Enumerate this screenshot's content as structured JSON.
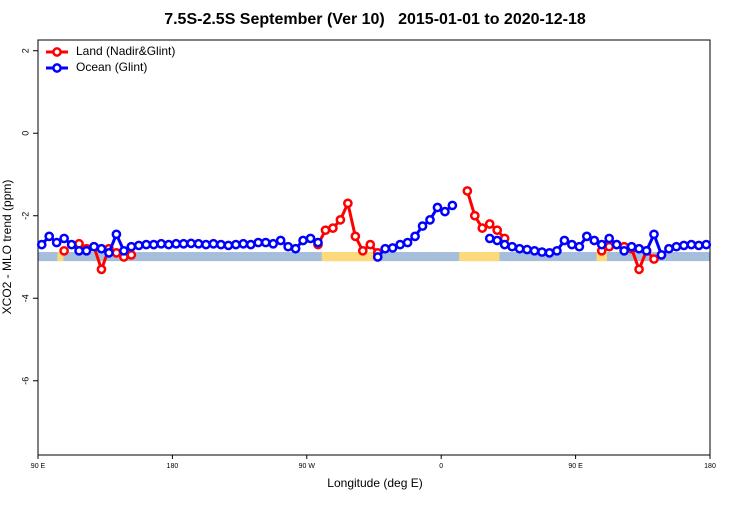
{
  "chart_data": {
    "type": "line",
    "title": "7.5S-2.5S September (Ver 10)   2015-01-01 to 2020-12-18",
    "xlabel": "Longitude (deg E)",
    "ylabel": "XCO2 - MLO trend (ppm)",
    "xlim": [
      90,
      540
    ],
    "xticks": [
      {
        "value": 90,
        "label": "90 E"
      },
      180,
      {
        "value": 270,
        "label": "90 W"
      },
      {
        "value": 360,
        "label": "0"
      },
      {
        "value": 450,
        "label": "90 E"
      },
      {
        "value": 540,
        "label": "180"
      }
    ],
    "ylim": [
      -7.8,
      2.26
    ],
    "yticks": [
      -6,
      -4,
      -2,
      0,
      2
    ],
    "legend": "top-left",
    "x": [
      92.5,
      97.5,
      102.5,
      107.5,
      112.5,
      117.5,
      122.5,
      127.5,
      132.5,
      137.5,
      142.5,
      147.5,
      152.5,
      157.5,
      162.5,
      167.5,
      172.5,
      177.5,
      182.5,
      187.5,
      192.5,
      197.5,
      202.5,
      207.5,
      212.5,
      217.5,
      222.5,
      227.5,
      232.5,
      237.5,
      242.5,
      247.5,
      252.5,
      257.5,
      262.5,
      267.5,
      272.5,
      277.5,
      282.5,
      287.5,
      292.5,
      297.5,
      302.5,
      307.5,
      312.5,
      317.5,
      322.5,
      327.5,
      332.5,
      337.5,
      342.5,
      347.5,
      352.5,
      357.5,
      362.5,
      367.5,
      372.5,
      377.5,
      382.5,
      387.5,
      392.5,
      397.5,
      402.5,
      407.5,
      412.5,
      417.5,
      422.5,
      427.5,
      432.5,
      437.5,
      442.5,
      447.5,
      452.5,
      457.5,
      462.5,
      467.5,
      472.5,
      477.5,
      482.5,
      487.5,
      492.5,
      497.5,
      502.5,
      507.5,
      512.5,
      517.5,
      522.5,
      527.5,
      532.5,
      537.5
    ],
    "series": [
      {
        "name": "Land (Nadir&Glint)",
        "color": "#ff0000",
        "values": [
          null,
          null,
          null,
          -2.85,
          null,
          -2.68,
          -2.8,
          -2.75,
          -3.3,
          -2.8,
          -2.9,
          -3.0,
          -2.95,
          null,
          null,
          null,
          null,
          null,
          null,
          null,
          null,
          null,
          null,
          null,
          null,
          null,
          null,
          null,
          null,
          null,
          null,
          null,
          null,
          null,
          null,
          null,
          null,
          -2.7,
          -2.35,
          -2.3,
          -2.1,
          -1.7,
          -2.5,
          -2.85,
          -2.7,
          -2.9,
          null,
          null,
          null,
          null,
          null,
          null,
          null,
          null,
          null,
          null,
          null,
          -1.4,
          -2.0,
          -2.3,
          -2.2,
          -2.35,
          -2.55,
          null,
          null,
          null,
          null,
          null,
          null,
          null,
          null,
          null,
          null,
          null,
          null,
          -2.85,
          -2.75,
          -2.7,
          -2.75,
          -2.8,
          -3.3,
          -2.85,
          -3.05,
          -2.95,
          null,
          null,
          null,
          null,
          null,
          null
        ]
      },
      {
        "name": "Ocean (Glint)",
        "color": "#0000ff",
        "values": [
          -2.7,
          -2.5,
          -2.65,
          -2.55,
          -2.7,
          -2.85,
          -2.85,
          -2.75,
          -2.8,
          -2.9,
          -2.45,
          -2.85,
          -2.75,
          -2.72,
          -2.7,
          -2.7,
          -2.68,
          -2.7,
          -2.68,
          -2.68,
          -2.67,
          -2.68,
          -2.7,
          -2.68,
          -2.7,
          -2.72,
          -2.7,
          -2.68,
          -2.7,
          -2.65,
          -2.65,
          -2.68,
          -2.6,
          -2.75,
          -2.8,
          -2.6,
          -2.55,
          -2.65,
          null,
          null,
          null,
          null,
          null,
          null,
          null,
          -3.0,
          -2.8,
          -2.78,
          -2.7,
          -2.65,
          -2.5,
          -2.25,
          -2.1,
          -1.8,
          -1.9,
          -1.75,
          null,
          null,
          null,
          null,
          -2.55,
          -2.6,
          -2.7,
          -2.75,
          -2.8,
          -2.82,
          -2.85,
          -2.88,
          -2.9,
          -2.85,
          -2.6,
          -2.7,
          -2.75,
          -2.5,
          -2.6,
          -2.7,
          -2.55,
          -2.7,
          -2.85,
          -2.75,
          -2.8,
          -2.85,
          -2.45,
          -2.95,
          -2.8,
          -2.75,
          -2.72,
          -2.7,
          -2.72,
          -2.7
        ]
      }
    ],
    "band_y": [
      -3.1,
      -2.88
    ],
    "ocean_color": "#a6bddb",
    "land_color": "#fdd97a",
    "land_bands": [
      [
        103,
        107
      ],
      [
        280,
        318
      ],
      [
        372,
        399
      ],
      [
        464,
        471
      ]
    ]
  }
}
